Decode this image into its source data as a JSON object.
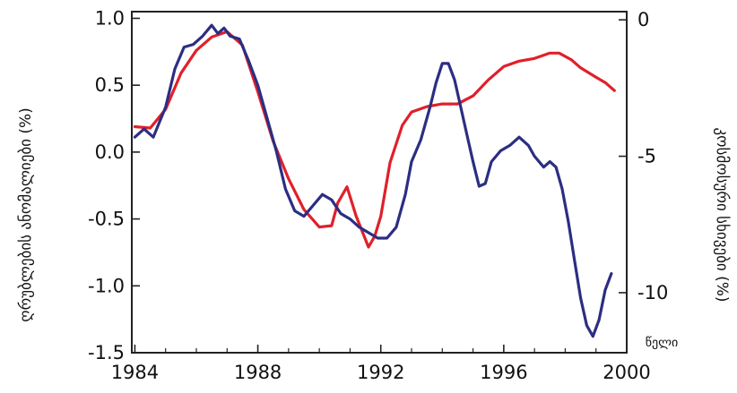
{
  "chart_data": {
    "type": "line",
    "x_ticks": [
      1984,
      1988,
      1992,
      1996,
      2000
    ],
    "x_tick_labels": [
      "1984",
      "1988",
      "1992",
      "1996",
      "2000"
    ],
    "xlim": [
      1983.9,
      2000
    ],
    "xlabel": "წელი",
    "y_left": {
      "label": "ღრუბლების ანომალიები (%)",
      "ticks": [
        1.0,
        0.5,
        0.0,
        -0.5,
        -1.0,
        -1.5
      ],
      "tick_labels": [
        "1.0",
        "0.5",
        "0.0",
        "-0.5",
        "-1.0",
        "-1.5"
      ],
      "ylim": [
        -1.5,
        1.05
      ]
    },
    "y_right": {
      "label": "კოსმოსური სხივები (%)",
      "ticks": [
        0,
        -5,
        -10
      ],
      "tick_labels": [
        "0",
        "-5",
        "-10"
      ],
      "ylim": [
        -12.2,
        0.3
      ]
    },
    "series": [
      {
        "color": "#e0202a",
        "axis": "left",
        "points": [
          [
            1984.0,
            0.19
          ],
          [
            1984.5,
            0.18
          ],
          [
            1985.0,
            0.32
          ],
          [
            1985.5,
            0.59
          ],
          [
            1986.0,
            0.76
          ],
          [
            1986.5,
            0.86
          ],
          [
            1987.0,
            0.9
          ],
          [
            1987.5,
            0.8
          ],
          [
            1988.0,
            0.45
          ],
          [
            1988.5,
            0.08
          ],
          [
            1989.0,
            -0.2
          ],
          [
            1989.5,
            -0.43
          ],
          [
            1990.0,
            -0.56
          ],
          [
            1990.4,
            -0.55
          ],
          [
            1990.6,
            -0.38
          ],
          [
            1990.9,
            -0.26
          ],
          [
            1991.2,
            -0.48
          ],
          [
            1991.6,
            -0.71
          ],
          [
            1991.8,
            -0.63
          ],
          [
            1992.0,
            -0.48
          ],
          [
            1992.3,
            -0.08
          ],
          [
            1992.7,
            0.2
          ],
          [
            1993.0,
            0.3
          ],
          [
            1993.5,
            0.34
          ],
          [
            1994.0,
            0.36
          ],
          [
            1994.5,
            0.36
          ],
          [
            1995.0,
            0.42
          ],
          [
            1995.5,
            0.54
          ],
          [
            1996.0,
            0.64
          ],
          [
            1996.5,
            0.68
          ],
          [
            1997.0,
            0.7
          ],
          [
            1997.5,
            0.74
          ],
          [
            1997.8,
            0.74
          ],
          [
            1998.2,
            0.69
          ],
          [
            1998.5,
            0.63
          ],
          [
            1999.0,
            0.56
          ],
          [
            1999.3,
            0.52
          ],
          [
            1999.6,
            0.46
          ]
        ]
      },
      {
        "color": "#2c2e82",
        "axis": "right",
        "points": [
          [
            1984.0,
            -4.3
          ],
          [
            1984.3,
            -4.0
          ],
          [
            1984.6,
            -4.3
          ],
          [
            1985.0,
            -3.2
          ],
          [
            1985.3,
            -1.8
          ],
          [
            1985.6,
            -1.0
          ],
          [
            1985.9,
            -0.9
          ],
          [
            1986.2,
            -0.6
          ],
          [
            1986.5,
            -0.2
          ],
          [
            1986.7,
            -0.5
          ],
          [
            1986.9,
            -0.3
          ],
          [
            1987.1,
            -0.6
          ],
          [
            1987.4,
            -0.7
          ],
          [
            1987.7,
            -1.5
          ],
          [
            1988.0,
            -2.4
          ],
          [
            1988.3,
            -3.6
          ],
          [
            1988.6,
            -4.8
          ],
          [
            1988.9,
            -6.2
          ],
          [
            1989.2,
            -7.0
          ],
          [
            1989.5,
            -7.2
          ],
          [
            1989.8,
            -6.8
          ],
          [
            1990.1,
            -6.4
          ],
          [
            1990.4,
            -6.6
          ],
          [
            1990.7,
            -7.1
          ],
          [
            1991.0,
            -7.3
          ],
          [
            1991.3,
            -7.6
          ],
          [
            1991.6,
            -7.8
          ],
          [
            1991.9,
            -8.0
          ],
          [
            1992.2,
            -8.0
          ],
          [
            1992.5,
            -7.6
          ],
          [
            1992.8,
            -6.4
          ],
          [
            1993.0,
            -5.2
          ],
          [
            1993.3,
            -4.4
          ],
          [
            1993.6,
            -3.2
          ],
          [
            1993.8,
            -2.3
          ],
          [
            1994.0,
            -1.6
          ],
          [
            1994.2,
            -1.6
          ],
          [
            1994.4,
            -2.2
          ],
          [
            1994.6,
            -3.2
          ],
          [
            1994.8,
            -4.2
          ],
          [
            1995.0,
            -5.2
          ],
          [
            1995.2,
            -6.1
          ],
          [
            1995.4,
            -6.0
          ],
          [
            1995.6,
            -5.2
          ],
          [
            1995.9,
            -4.8
          ],
          [
            1996.2,
            -4.6
          ],
          [
            1996.5,
            -4.3
          ],
          [
            1996.8,
            -4.6
          ],
          [
            1997.0,
            -5.0
          ],
          [
            1997.3,
            -5.4
          ],
          [
            1997.5,
            -5.2
          ],
          [
            1997.7,
            -5.4
          ],
          [
            1997.9,
            -6.2
          ],
          [
            1998.1,
            -7.4
          ],
          [
            1998.3,
            -8.8
          ],
          [
            1998.5,
            -10.2
          ],
          [
            1998.7,
            -11.2
          ],
          [
            1998.9,
            -11.6
          ],
          [
            1999.1,
            -11.0
          ],
          [
            1999.3,
            -9.9
          ],
          [
            1999.5,
            -9.3
          ]
        ]
      }
    ]
  }
}
